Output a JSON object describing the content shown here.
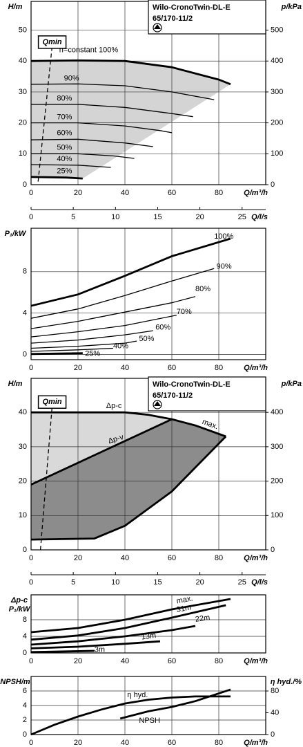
{
  "chart_data": [
    {
      "type": "line",
      "title_lines": [
        "Wilo-CronoTwin-DL-E",
        "65/170-11/2"
      ],
      "ylabel": "H/m",
      "y2label": "p/kPa",
      "xlabel": "Q/m³/h",
      "x2label": "Q/l/s",
      "xlim": [
        0,
        100
      ],
      "xticks": [
        0,
        20,
        40,
        60,
        80
      ],
      "ylim": [
        0,
        59.3
      ],
      "yticks": [
        0,
        10,
        20,
        30,
        40,
        50
      ],
      "y2lim": [
        0,
        593
      ],
      "y2ticks": [
        0,
        100,
        200,
        300,
        400,
        500
      ],
      "x2lim": [
        0,
        27.8
      ],
      "x2ticks": [
        0,
        5,
        10,
        15,
        20,
        25
      ],
      "grid": true,
      "area_colors": [
        "#d4d4d4"
      ],
      "series": [
        {
          "name": "n=constant 100%",
          "color": "#000000",
          "bold": true,
          "x": [
            0,
            20,
            40,
            60,
            80,
            85
          ],
          "values": [
            40,
            40.2,
            40,
            38,
            34,
            32.5
          ]
        },
        {
          "name": "90%",
          "color": "#000000",
          "x": [
            0,
            20,
            40,
            60,
            78
          ],
          "values": [
            32.5,
            32.6,
            32,
            30,
            27.5
          ]
        },
        {
          "name": "80%",
          "color": "#000000",
          "x": [
            0,
            20,
            40,
            60,
            69
          ],
          "values": [
            26,
            26,
            25,
            23,
            22
          ]
        },
        {
          "name": "70%",
          "color": "#000000",
          "x": [
            0,
            20,
            40,
            55,
            60
          ],
          "values": [
            20,
            20,
            19,
            17.5,
            16.8
          ]
        },
        {
          "name": "60%",
          "color": "#000000",
          "x": [
            0,
            20,
            40,
            52
          ],
          "values": [
            14.5,
            14.7,
            13.5,
            12.3
          ]
        },
        {
          "name": "50%",
          "color": "#000000",
          "x": [
            0,
            20,
            35,
            44
          ],
          "values": [
            10,
            10,
            9.3,
            8.5
          ]
        },
        {
          "name": "40%",
          "color": "#000000",
          "x": [
            0,
            20,
            34
          ],
          "values": [
            6.5,
            6.3,
            5.6
          ]
        },
        {
          "name": "25%",
          "color": "#000000",
          "bold": true,
          "x": [
            0,
            15,
            22
          ],
          "values": [
            2.5,
            2.3,
            2
          ]
        },
        {
          "name": "Qmin",
          "color": "#000000",
          "dash": true,
          "x": [
            3,
            9
          ],
          "values": [
            1,
            45
          ]
        }
      ]
    },
    {
      "type": "line",
      "ylabel": "P₁/kW",
      "xlabel": "Q/m³/h",
      "xlim": [
        0,
        100
      ],
      "xticks": [
        0,
        20,
        40,
        60,
        80
      ],
      "ylim": [
        -0.5,
        12.2
      ],
      "yticks": [
        0,
        4,
        8
      ],
      "grid": true,
      "series": [
        {
          "name": "100%",
          "color": "#000000",
          "bold": true,
          "x": [
            0,
            20,
            40,
            60,
            85
          ],
          "values": [
            4.7,
            5.8,
            7.6,
            9.5,
            11.2
          ]
        },
        {
          "name": "90%",
          "color": "#000000",
          "x": [
            0,
            20,
            40,
            60,
            78
          ],
          "values": [
            3.5,
            4.4,
            5.7,
            7.1,
            8.3
          ]
        },
        {
          "name": "80%",
          "color": "#000000",
          "x": [
            0,
            20,
            40,
            60,
            70
          ],
          "values": [
            2.5,
            3.2,
            4.1,
            5,
            5.6
          ]
        },
        {
          "name": "70%",
          "color": "#000000",
          "x": [
            0,
            20,
            40,
            62
          ],
          "values": [
            1.7,
            2.2,
            2.8,
            3.8
          ]
        },
        {
          "name": "60%",
          "color": "#000000",
          "x": [
            0,
            20,
            40,
            52
          ],
          "values": [
            1.1,
            1.4,
            1.9,
            2.3
          ]
        },
        {
          "name": "50%",
          "color": "#000000",
          "x": [
            0,
            20,
            40,
            45
          ],
          "values": [
            0.6,
            0.8,
            1.1,
            1.3
          ]
        },
        {
          "name": "40%",
          "color": "#000000",
          "x": [
            0,
            20,
            35
          ],
          "values": [
            0.3,
            0.45,
            0.6
          ]
        },
        {
          "name": "25%",
          "color": "#000000",
          "bold": true,
          "x": [
            0,
            22
          ],
          "values": [
            0.05,
            0.12
          ]
        }
      ]
    },
    {
      "type": "line",
      "title_lines": [
        "Wilo-CronoTwin-DL-E",
        "65/170-11/2"
      ],
      "ylabel": "H/m",
      "y2label": "p/kPa",
      "xlabel": "Q/m³/h",
      "x2label": "Q/l/s",
      "xlim": [
        0,
        100
      ],
      "xticks": [
        0,
        20,
        40,
        60,
        80
      ],
      "ylim": [
        0,
        49.9
      ],
      "yticks": [
        0,
        10,
        20,
        30,
        40
      ],
      "y2lim": [
        0,
        499
      ],
      "y2ticks": [
        0,
        100,
        200,
        300,
        400
      ],
      "x2lim": [
        0,
        27.8
      ],
      "x2ticks": [
        0,
        5,
        10,
        15,
        20,
        25
      ],
      "grid": true,
      "area_colors": [
        "#d9d9d9",
        "#8c8c8c"
      ],
      "series": [
        {
          "name": "Δp-c",
          "color": "#000000",
          "bold": true,
          "x": [
            0,
            40,
            50,
            60
          ],
          "values": [
            40,
            40,
            39.3,
            38
          ]
        },
        {
          "name": "Δp-v",
          "color": "#000000",
          "bold": true,
          "x": [
            0,
            60
          ],
          "values": [
            19,
            38
          ]
        },
        {
          "name": "max.",
          "color": "#000000",
          "bold": true,
          "x": [
            60,
            70,
            83
          ],
          "values": [
            38,
            36.2,
            33
          ]
        },
        {
          "color": "#000000",
          "bold": true,
          "x": [
            0,
            27,
            40,
            60,
            83
          ],
          "values": [
            3,
            3.3,
            7,
            17,
            33
          ]
        },
        {
          "name": "Qmin",
          "color": "#000000",
          "dash": true,
          "x": [
            4,
            9
          ],
          "values": [
            0,
            42
          ]
        }
      ]
    },
    {
      "type": "line",
      "ylabel_lines": [
        "Δp-c",
        "P₁/kW"
      ],
      "xlabel": "Q/m³/h",
      "xlim": [
        0,
        100
      ],
      "xticks": [
        0,
        20,
        40,
        60,
        80
      ],
      "ylim": [
        0,
        14
      ],
      "yticks": [
        0,
        4,
        8
      ],
      "grid": true,
      "series": [
        {
          "name": "max.",
          "color": "#000000",
          "bold": true,
          "x": [
            0,
            20,
            40,
            60,
            85
          ],
          "values": [
            5,
            6,
            8,
            10.5,
            13
          ]
        },
        {
          "name": "31m",
          "color": "#000000",
          "bold": true,
          "x": [
            0,
            20,
            40,
            60,
            83
          ],
          "values": [
            3.2,
            4.2,
            6,
            8.5,
            11.5
          ]
        },
        {
          "name": "22m",
          "color": "#000000",
          "bold": true,
          "x": [
            0,
            20,
            40,
            60,
            70
          ],
          "values": [
            2,
            2.8,
            4,
            5.5,
            6.5
          ]
        },
        {
          "name": "13m",
          "color": "#000000",
          "bold": true,
          "x": [
            0,
            20,
            40,
            55
          ],
          "values": [
            1.1,
            1.5,
            2.2,
            2.8
          ]
        },
        {
          "name": "3m",
          "color": "#000000",
          "bold": true,
          "x": [
            0,
            27
          ],
          "values": [
            0.2,
            0.5
          ]
        }
      ]
    },
    {
      "type": "line",
      "ylabel": "NPSH/m",
      "y2label": "η hyd./%",
      "xlabel": "Q/m³/h",
      "xlim": [
        0,
        100
      ],
      "xticks": [
        0,
        20,
        40,
        60,
        80
      ],
      "ylim": [
        0,
        8
      ],
      "yticks": [
        0,
        2,
        4,
        6
      ],
      "y2lim": [
        0,
        106.7
      ],
      "y2ticks": [
        0,
        40,
        80
      ],
      "grid": true,
      "series": [
        {
          "name": "η hyd.",
          "color": "#000000",
          "bold": true,
          "axis": "y2",
          "x": [
            0,
            10,
            20,
            30,
            40,
            50,
            60,
            70,
            85
          ],
          "values": [
            0,
            18,
            33,
            46,
            57,
            64,
            68,
            70,
            70
          ]
        },
        {
          "name": "NPSH",
          "color": "#000000",
          "bold": true,
          "x": [
            38,
            50,
            60,
            70,
            85
          ],
          "values": [
            2.2,
            3.2,
            3.8,
            4.6,
            6.2
          ]
        }
      ]
    }
  ]
}
